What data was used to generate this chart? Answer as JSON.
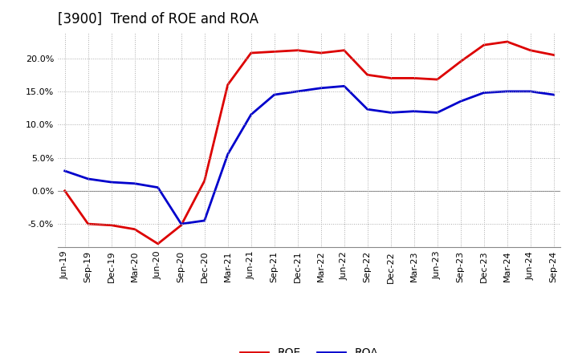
{
  "title": "[3900]  Trend of ROE and ROA",
  "labels": [
    "Jun-19",
    "Sep-19",
    "Dec-19",
    "Mar-20",
    "Jun-20",
    "Sep-20",
    "Dec-20",
    "Mar-21",
    "Jun-21",
    "Sep-21",
    "Dec-21",
    "Mar-22",
    "Jun-22",
    "Sep-22",
    "Dec-22",
    "Mar-23",
    "Jun-23",
    "Sep-23",
    "Dec-23",
    "Mar-24",
    "Jun-24",
    "Sep-24"
  ],
  "ROE": [
    0.0,
    -5.0,
    -5.2,
    -5.8,
    -8.0,
    -5.2,
    1.5,
    16.0,
    20.8,
    21.0,
    21.2,
    20.8,
    21.2,
    17.5,
    17.0,
    17.0,
    16.8,
    19.5,
    22.0,
    22.5,
    21.2,
    20.5
  ],
  "ROA": [
    3.0,
    1.8,
    1.3,
    1.1,
    0.5,
    -5.0,
    -4.5,
    5.5,
    11.5,
    14.5,
    15.0,
    15.5,
    15.8,
    12.3,
    11.8,
    12.0,
    11.8,
    13.5,
    14.8,
    15.0,
    15.0,
    14.5
  ],
  "roe_color": "#dd0000",
  "roa_color": "#0000cc",
  "background_color": "#ffffff",
  "grid_color": "#aaaaaa",
  "ylim": [
    -8.5,
    24
  ],
  "yticks": [
    -5.0,
    0.0,
    5.0,
    10.0,
    15.0,
    20.0
  ],
  "legend_roe": "ROE",
  "legend_roa": "ROA",
  "linewidth": 2.0,
  "title_fontsize": 12,
  "tick_fontsize": 8,
  "legend_fontsize": 10
}
